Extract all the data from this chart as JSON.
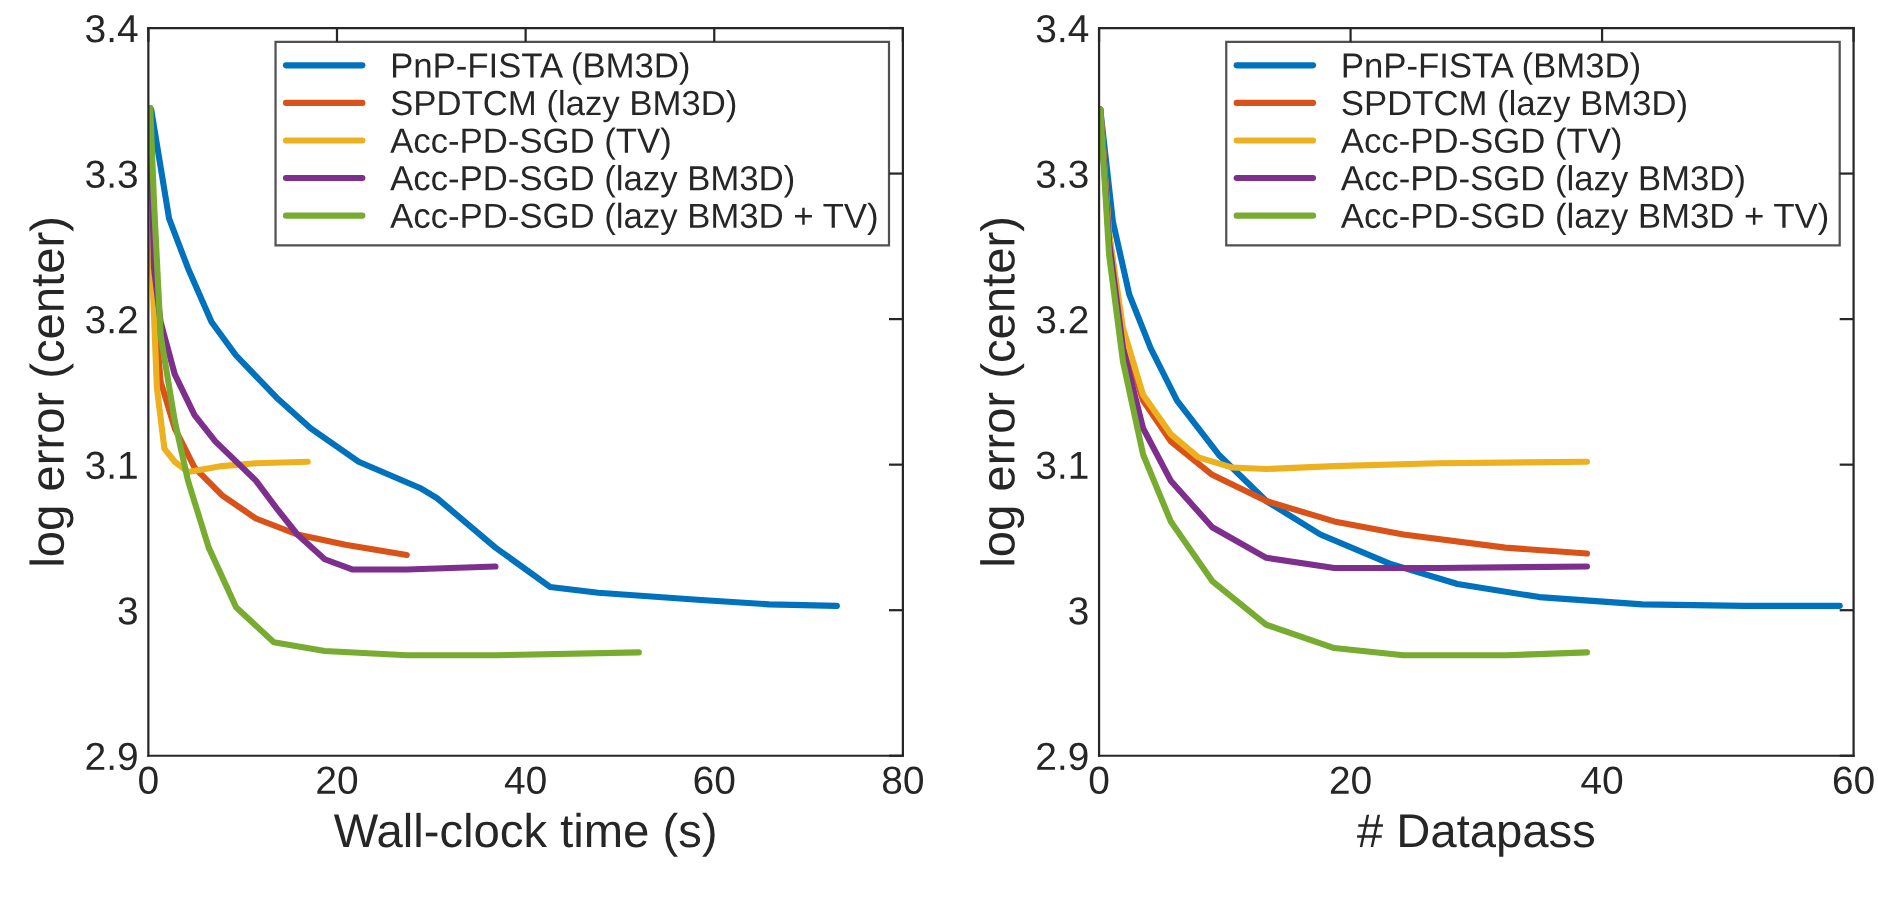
{
  "chart_data": [
    {
      "type": "line",
      "xlabel": "Wall-clock time (s)",
      "ylabel": "log error (center)",
      "xlim": [
        0,
        80
      ],
      "xticks": [
        0,
        20,
        40,
        60,
        80
      ],
      "ylim": [
        2.9,
        3.4
      ],
      "yticks": [
        2.9,
        3,
        3.1,
        3.2,
        3.3,
        3.4
      ],
      "legend": "top right",
      "grid": false,
      "line_style": "solid",
      "marker": "none",
      "series": [
        {
          "name": "PnP-FISTA (BM3D)",
          "color": "#0072bd",
          "x": [
            0.3,
            2.2,
            4.2,
            6.7,
            9.3,
            13.6,
            17.2,
            22.3,
            28.8,
            30.6,
            36.8,
            42.6,
            47.7,
            58.6,
            65.8,
            73
          ],
          "values": [
            3.344,
            3.269,
            3.235,
            3.198,
            3.175,
            3.146,
            3.125,
            3.102,
            3.084,
            3.077,
            3.043,
            3.016,
            3.012,
            3.007,
            3.004,
            3.003
          ]
        },
        {
          "name": "SPDTCM (lazy BM3D)",
          "color": "#d95319",
          "x": [
            0,
            0.6,
            1.3,
            2.8,
            4.9,
            7.8,
            11.4,
            15.8,
            20.9,
            27.4
          ],
          "values": [
            3.345,
            3.212,
            3.157,
            3.125,
            3.098,
            3.079,
            3.063,
            3.052,
            3.045,
            3.038
          ]
        },
        {
          "name": "Acc-PD-SGD (TV)",
          "color": "#edb120",
          "x": [
            0,
            0.4,
            0.9,
            1.7,
            2.8,
            4.2,
            7.8,
            11.4,
            16.9
          ],
          "values": [
            3.345,
            3.235,
            3.153,
            3.111,
            3.102,
            3.095,
            3.099,
            3.101,
            3.102
          ]
        },
        {
          "name": "Acc-PD-SGD (lazy BM3D)",
          "color": "#7e2f8e",
          "x": [
            0.2,
            0.6,
            1.3,
            2.8,
            4.9,
            7.1,
            11.4,
            13.6,
            15.8,
            18.7,
            21.6,
            27.4,
            36.8
          ],
          "values": [
            3.345,
            3.235,
            3.198,
            3.162,
            3.134,
            3.116,
            3.089,
            3.07,
            3.052,
            3.035,
            3.028,
            3.028,
            3.03
          ]
        },
        {
          "name": "Acc-PD-SGD (lazy BM3D + TV)",
          "color": "#77ac30",
          "x": [
            0.2,
            0.6,
            1.3,
            2.8,
            4.2,
            6.4,
            9.3,
            13.3,
            18.7,
            27.4,
            36.8,
            52
          ],
          "values": [
            3.345,
            3.28,
            3.189,
            3.13,
            3.089,
            3.043,
            3.002,
            2.978,
            2.972,
            2.969,
            2.969,
            2.971
          ]
        }
      ]
    },
    {
      "type": "line",
      "xlabel": "# Datapass",
      "ylabel": "log error (center)",
      "xlim": [
        0,
        60
      ],
      "xticks": [
        0,
        20,
        40,
        60
      ],
      "ylim": [
        2.9,
        3.4
      ],
      "yticks": [
        2.9,
        3,
        3.1,
        3.2,
        3.3,
        3.4
      ],
      "legend": "top right",
      "grid": false,
      "line_style": "solid",
      "marker": "none",
      "series": [
        {
          "name": "PnP-FISTA (BM3D)",
          "color": "#0072bd",
          "x": [
            0.1,
            1.1,
            2.4,
            4.1,
            6.2,
            9.5,
            13.3,
            17.6,
            23.1,
            28.5,
            35,
            43.2,
            51.3,
            58.9
          ],
          "values": [
            3.344,
            3.267,
            3.217,
            3.18,
            3.144,
            3.107,
            3.075,
            3.052,
            3.032,
            3.018,
            3.009,
            3.004,
            3.003,
            3.003
          ]
        },
        {
          "name": "SPDTCM (lazy BM3D)",
          "color": "#d95319",
          "x": [
            0.1,
            0.8,
            1.9,
            3.5,
            5.7,
            9,
            13.3,
            18.7,
            24.2,
            32.3,
            38.8
          ],
          "values": [
            3.344,
            3.258,
            3.189,
            3.144,
            3.116,
            3.093,
            3.075,
            3.061,
            3.052,
            3.043,
            3.039
          ]
        },
        {
          "name": "Acc-PD-SGD (TV)",
          "color": "#edb120",
          "x": [
            0.1,
            0.8,
            1.9,
            3.5,
            5.7,
            7.9,
            10.6,
            13.3,
            18.7,
            26.9,
            38.8
          ],
          "values": [
            3.344,
            3.258,
            3.194,
            3.148,
            3.121,
            3.105,
            3.098,
            3.097,
            3.099,
            3.101,
            3.102
          ]
        },
        {
          "name": "Acc-PD-SGD (lazy BM3D)",
          "color": "#7e2f8e",
          "x": [
            0.1,
            0.8,
            1.9,
            3.5,
            5.7,
            9,
            13.3,
            18.7,
            26.9,
            38.8
          ],
          "values": [
            3.344,
            3.253,
            3.18,
            3.125,
            3.089,
            3.057,
            3.036,
            3.029,
            3.029,
            3.03
          ]
        },
        {
          "name": "Acc-PD-SGD (lazy BM3D + TV)",
          "color": "#77ac30",
          "x": [
            0.1,
            0.8,
            1.9,
            3.5,
            5.7,
            9,
            13.3,
            18.7,
            24.2,
            32.3,
            38.8
          ],
          "values": [
            3.344,
            3.244,
            3.171,
            3.107,
            3.061,
            3.02,
            2.99,
            2.974,
            2.969,
            2.969,
            2.971
          ]
        }
      ]
    }
  ]
}
